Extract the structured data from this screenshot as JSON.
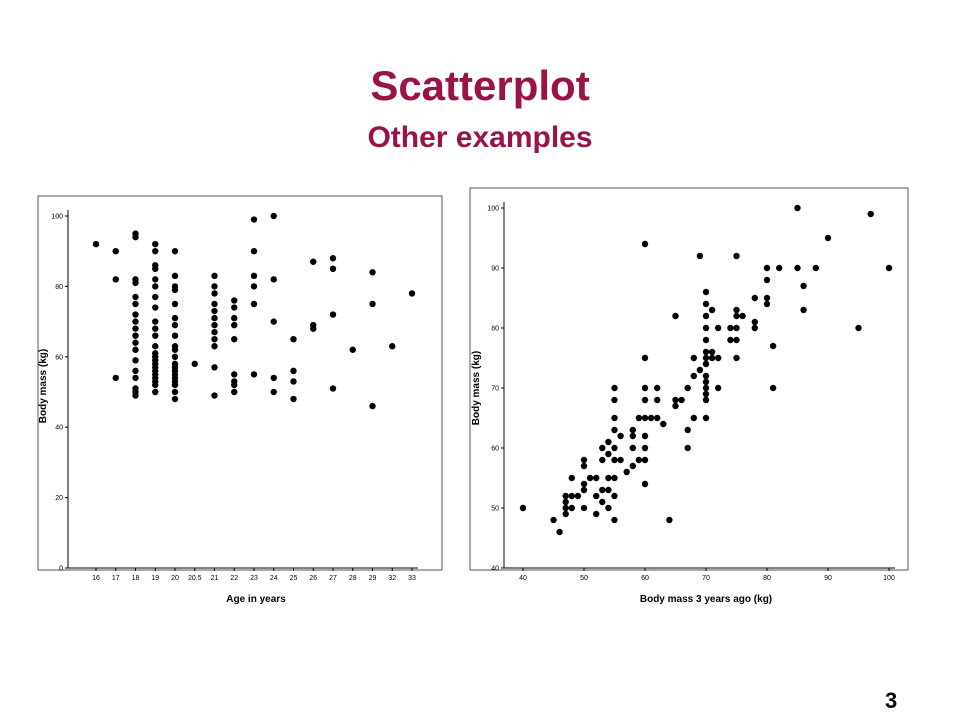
{
  "slide": {
    "title": "Scatterplot",
    "subtitle": "Other examples",
    "page_number": "3",
    "accent_color": "#99134a"
  },
  "chart_data": [
    {
      "type": "scatter",
      "xlabel": "Age in years",
      "ylabel": "Body mass (kg)",
      "x_scale": "categorical",
      "categories": [
        "16",
        "17",
        "18",
        "19",
        "20",
        "20.5",
        "21",
        "22",
        "23",
        "24",
        "25",
        "26",
        "27",
        "28",
        "29",
        "32",
        "33"
      ],
      "yticks": [
        0,
        20,
        40,
        60,
        80,
        100
      ],
      "ylim": [
        0,
        100
      ],
      "grid": false,
      "points": [
        [
          "16",
          92
        ],
        [
          "17",
          90
        ],
        [
          "17",
          82
        ],
        [
          "17",
          54
        ],
        [
          "18",
          95
        ],
        [
          "18",
          94
        ],
        [
          "18",
          82
        ],
        [
          "18",
          81
        ],
        [
          "18",
          77
        ],
        [
          "18",
          75
        ],
        [
          "18",
          72
        ],
        [
          "18",
          70
        ],
        [
          "18",
          68
        ],
        [
          "18",
          66
        ],
        [
          "18",
          64
        ],
        [
          "18",
          62
        ],
        [
          "18",
          59
        ],
        [
          "18",
          56
        ],
        [
          "18",
          54
        ],
        [
          "18",
          51
        ],
        [
          "18",
          50
        ],
        [
          "18",
          49
        ],
        [
          "19",
          92
        ],
        [
          "19",
          90
        ],
        [
          "19",
          86
        ],
        [
          "19",
          85
        ],
        [
          "19",
          82
        ],
        [
          "19",
          80
        ],
        [
          "19",
          77
        ],
        [
          "19",
          74
        ],
        [
          "19",
          70
        ],
        [
          "19",
          68
        ],
        [
          "19",
          66
        ],
        [
          "19",
          63
        ],
        [
          "19",
          61
        ],
        [
          "19",
          60
        ],
        [
          "19",
          59
        ],
        [
          "19",
          58
        ],
        [
          "19",
          57
        ],
        [
          "19",
          56
        ],
        [
          "19",
          55
        ],
        [
          "19",
          54
        ],
        [
          "19",
          53
        ],
        [
          "19",
          52
        ],
        [
          "19",
          50
        ],
        [
          "20",
          90
        ],
        [
          "20",
          83
        ],
        [
          "20",
          80
        ],
        [
          "20",
          79
        ],
        [
          "20",
          75
        ],
        [
          "20",
          71
        ],
        [
          "20",
          69
        ],
        [
          "20",
          66
        ],
        [
          "20",
          63
        ],
        [
          "20",
          62
        ],
        [
          "20",
          60
        ],
        [
          "20",
          58
        ],
        [
          "20",
          57
        ],
        [
          "20",
          56
        ],
        [
          "20",
          55
        ],
        [
          "20",
          54
        ],
        [
          "20",
          53
        ],
        [
          "20",
          52
        ],
        [
          "20",
          50
        ],
        [
          "20",
          48
        ],
        [
          "20.5",
          58
        ],
        [
          "21",
          83
        ],
        [
          "21",
          80
        ],
        [
          "21",
          78
        ],
        [
          "21",
          75
        ],
        [
          "21",
          73
        ],
        [
          "21",
          71
        ],
        [
          "21",
          69
        ],
        [
          "21",
          67
        ],
        [
          "21",
          65
        ],
        [
          "21",
          63
        ],
        [
          "21",
          57
        ],
        [
          "21",
          49
        ],
        [
          "22",
          76
        ],
        [
          "22",
          74
        ],
        [
          "22",
          71
        ],
        [
          "22",
          69
        ],
        [
          "22",
          65
        ],
        [
          "22",
          55
        ],
        [
          "22",
          53
        ],
        [
          "22",
          52
        ],
        [
          "22",
          50
        ],
        [
          "23",
          99
        ],
        [
          "23",
          90
        ],
        [
          "23",
          83
        ],
        [
          "23",
          80
        ],
        [
          "23",
          75
        ],
        [
          "23",
          55
        ],
        [
          "24",
          100
        ],
        [
          "24",
          82
        ],
        [
          "24",
          70
        ],
        [
          "24",
          54
        ],
        [
          "24",
          50
        ],
        [
          "25",
          65
        ],
        [
          "25",
          56
        ],
        [
          "25",
          53
        ],
        [
          "25",
          48
        ],
        [
          "26",
          87
        ],
        [
          "26",
          69
        ],
        [
          "26",
          68
        ],
        [
          "27",
          88
        ],
        [
          "27",
          85
        ],
        [
          "27",
          72
        ],
        [
          "27",
          51
        ],
        [
          "28",
          62
        ],
        [
          "29",
          84
        ],
        [
          "29",
          75
        ],
        [
          "29",
          46
        ],
        [
          "32",
          63
        ],
        [
          "33",
          78
        ]
      ]
    },
    {
      "type": "scatter",
      "xlabel": "Body mass 3 years ago (kg)",
      "ylabel": "Body mass (kg)",
      "xlim": [
        40,
        100
      ],
      "ylim": [
        40,
        100
      ],
      "xticks": [
        40,
        50,
        60,
        70,
        80,
        90,
        100
      ],
      "yticks": [
        40,
        50,
        60,
        70,
        80,
        90,
        100
      ],
      "grid": false,
      "points": [
        [
          40,
          50
        ],
        [
          45,
          48
        ],
        [
          46,
          46
        ],
        [
          47,
          52
        ],
        [
          47,
          51
        ],
        [
          47,
          50
        ],
        [
          47,
          49
        ],
        [
          48,
          55
        ],
        [
          48,
          52
        ],
        [
          48,
          50
        ],
        [
          49,
          52
        ],
        [
          50,
          58
        ],
        [
          50,
          57
        ],
        [
          50,
          54
        ],
        [
          50,
          53
        ],
        [
          50,
          50
        ],
        [
          51,
          55
        ],
        [
          52,
          55
        ],
        [
          52,
          52
        ],
        [
          52,
          49
        ],
        [
          53,
          60
        ],
        [
          53,
          58
        ],
        [
          53,
          53
        ],
        [
          53,
          51
        ],
        [
          54,
          61
        ],
        [
          54,
          59
        ],
        [
          54,
          55
        ],
        [
          54,
          53
        ],
        [
          54,
          50
        ],
        [
          55,
          70
        ],
        [
          55,
          68
        ],
        [
          55,
          65
        ],
        [
          55,
          63
        ],
        [
          55,
          60
        ],
        [
          55,
          58
        ],
        [
          55,
          55
        ],
        [
          55,
          52
        ],
        [
          55,
          48
        ],
        [
          56,
          62
        ],
        [
          56,
          58
        ],
        [
          57,
          56
        ],
        [
          58,
          63
        ],
        [
          58,
          62
        ],
        [
          58,
          60
        ],
        [
          58,
          57
        ],
        [
          59,
          65
        ],
        [
          59,
          58
        ],
        [
          60,
          94
        ],
        [
          60,
          75
        ],
        [
          60,
          70
        ],
        [
          60,
          68
        ],
        [
          60,
          65
        ],
        [
          60,
          62
        ],
        [
          60,
          60
        ],
        [
          60,
          58
        ],
        [
          60,
          54
        ],
        [
          61,
          65
        ],
        [
          62,
          70
        ],
        [
          62,
          68
        ],
        [
          62,
          65
        ],
        [
          63,
          64
        ],
        [
          64,
          48
        ],
        [
          65,
          82
        ],
        [
          65,
          68
        ],
        [
          65,
          67
        ],
        [
          66,
          68
        ],
        [
          67,
          70
        ],
        [
          67,
          63
        ],
        [
          67,
          60
        ],
        [
          68,
          75
        ],
        [
          68,
          72
        ],
        [
          68,
          65
        ],
        [
          69,
          92
        ],
        [
          69,
          73
        ],
        [
          70,
          86
        ],
        [
          70,
          84
        ],
        [
          70,
          82
        ],
        [
          70,
          80
        ],
        [
          70,
          78
        ],
        [
          70,
          76
        ],
        [
          70,
          75
        ],
        [
          70,
          74
        ],
        [
          70,
          72
        ],
        [
          70,
          71
        ],
        [
          70,
          70
        ],
        [
          70,
          69
        ],
        [
          70,
          68
        ],
        [
          70,
          65
        ],
        [
          71,
          83
        ],
        [
          71,
          76
        ],
        [
          71,
          75
        ],
        [
          72,
          80
        ],
        [
          72,
          75
        ],
        [
          72,
          70
        ],
        [
          74,
          80
        ],
        [
          74,
          78
        ],
        [
          75,
          92
        ],
        [
          75,
          83
        ],
        [
          75,
          82
        ],
        [
          75,
          80
        ],
        [
          75,
          78
        ],
        [
          75,
          75
        ],
        [
          76,
          82
        ],
        [
          78,
          85
        ],
        [
          78,
          81
        ],
        [
          78,
          80
        ],
        [
          80,
          90
        ],
        [
          80,
          88
        ],
        [
          80,
          85
        ],
        [
          80,
          84
        ],
        [
          81,
          77
        ],
        [
          81,
          70
        ],
        [
          82,
          90
        ],
        [
          85,
          100
        ],
        [
          85,
          90
        ],
        [
          86,
          87
        ],
        [
          86,
          83
        ],
        [
          88,
          90
        ],
        [
          90,
          95
        ],
        [
          95,
          80
        ],
        [
          97,
          99
        ],
        [
          100,
          90
        ]
      ]
    }
  ]
}
